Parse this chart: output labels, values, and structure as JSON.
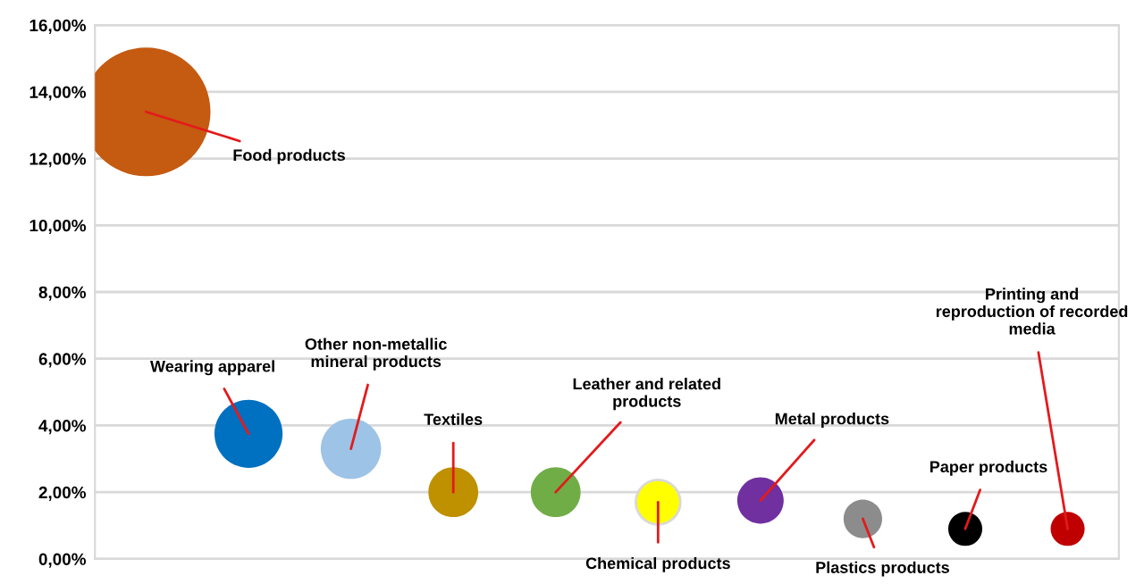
{
  "chart_data": {
    "type": "bubble",
    "categories": [
      null,
      null,
      null,
      null,
      null,
      null,
      null,
      null,
      null,
      null
    ],
    "ylim": [
      0,
      16
    ],
    "yticks": [
      {
        "value": 0,
        "label": "0,00%"
      },
      {
        "value": 2,
        "label": "2,00%"
      },
      {
        "value": 4,
        "label": "4,00%"
      },
      {
        "value": 6,
        "label": "6,00%"
      },
      {
        "value": 8,
        "label": "8,00%"
      },
      {
        "value": 10,
        "label": "10,00%"
      },
      {
        "value": 12,
        "label": "12,00%"
      },
      {
        "value": 14,
        "label": "14,00%"
      },
      {
        "value": 16,
        "label": "16,00%"
      }
    ],
    "grid": "y",
    "tick_labels": "y",
    "series": [
      {
        "name": "Food products",
        "color": "#c55a11",
        "values": [
          13.4,
          null,
          null,
          null,
          null,
          null,
          null,
          null,
          null,
          null
        ],
        "sizes": [
          1,
          null,
          null,
          null,
          null,
          null,
          null,
          null,
          null,
          null
        ]
      },
      {
        "name": "Wearing apparel",
        "color": "#0070c0",
        "values": [
          null,
          3.75,
          null,
          null,
          null,
          null,
          null,
          null,
          null,
          null
        ],
        "sizes": [
          null,
          0.28,
          null,
          null,
          null,
          null,
          null,
          null,
          null,
          null
        ]
      },
      {
        "name": "Other non-metallic\nmineral products",
        "color": "#9dc3e6",
        "values": [
          null,
          null,
          3.3,
          null,
          null,
          null,
          null,
          null,
          null,
          null
        ],
        "sizes": [
          null,
          null,
          0.22,
          null,
          null,
          null,
          null,
          null,
          null,
          null
        ]
      },
      {
        "name": "Textiles",
        "color": "#bf9000",
        "values": [
          null,
          null,
          null,
          2.0,
          null,
          null,
          null,
          null,
          null,
          null
        ],
        "sizes": [
          null,
          null,
          null,
          0.15,
          null,
          null,
          null,
          null,
          null,
          null
        ]
      },
      {
        "name": "Leather and related\nproducts",
        "color": "#70ad47",
        "values": [
          null,
          null,
          null,
          null,
          2.0,
          null,
          null,
          null,
          null,
          null
        ],
        "sizes": [
          null,
          null,
          null,
          null,
          0.15,
          null,
          null,
          null,
          null,
          null
        ]
      },
      {
        "name": "Chemical products",
        "color": "#ffff00",
        "values": [
          null,
          null,
          null,
          null,
          null,
          1.7,
          null,
          null,
          null,
          null
        ],
        "sizes": [
          null,
          null,
          null,
          null,
          null,
          0.12,
          null,
          null,
          null,
          null
        ]
      },
      {
        "name": "Metal products",
        "color": "#7030a0",
        "values": [
          null,
          null,
          null,
          null,
          null,
          null,
          1.75,
          null,
          null,
          null
        ],
        "sizes": [
          null,
          null,
          null,
          null,
          null,
          null,
          0.13,
          null,
          null,
          null
        ]
      },
      {
        "name": "Plastics products",
        "color": "#8c8c8c",
        "values": [
          null,
          null,
          null,
          null,
          null,
          null,
          null,
          1.2,
          null,
          null
        ],
        "sizes": [
          null,
          null,
          null,
          null,
          null,
          null,
          null,
          0.09,
          null,
          null
        ]
      },
      {
        "name": "Paper products",
        "color": "#000000",
        "values": [
          null,
          null,
          null,
          null,
          null,
          null,
          null,
          null,
          0.9,
          null
        ],
        "sizes": [
          null,
          null,
          null,
          null,
          null,
          null,
          null,
          null,
          0.07,
          null
        ]
      },
      {
        "name": "Printing and\nreproduction of recorded\nmedia",
        "color": "#c00000",
        "values": [
          null,
          null,
          null,
          null,
          null,
          null,
          null,
          null,
          null,
          0.9
        ],
        "sizes": [
          null,
          null,
          null,
          null,
          null,
          null,
          null,
          null,
          null,
          0.07
        ]
      }
    ]
  }
}
